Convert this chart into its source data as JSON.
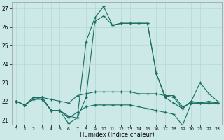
{
  "xlabel": "Humidex (Indice chaleur)",
  "xlim": [
    -0.5,
    23.5
  ],
  "ylim": [
    20.75,
    27.35
  ],
  "yticks": [
    21,
    22,
    23,
    24,
    25,
    26,
    27
  ],
  "xticks": [
    0,
    1,
    2,
    3,
    4,
    5,
    6,
    7,
    8,
    9,
    10,
    11,
    12,
    13,
    14,
    15,
    16,
    17,
    18,
    19,
    20,
    21,
    22,
    23
  ],
  "bg_color": "#cde9e7",
  "grid_color": "#b2d8d5",
  "line_color": "#1a6e62",
  "curve1_x": [
    0,
    1,
    2,
    3,
    4,
    5,
    6,
    7,
    8,
    9,
    10,
    11,
    12,
    13,
    14,
    15,
    16,
    17,
    18,
    19,
    20,
    21,
    22,
    23
  ],
  "curve1_y": [
    22.0,
    21.8,
    22.2,
    22.2,
    21.5,
    21.5,
    21.2,
    21.1,
    25.2,
    26.5,
    27.1,
    26.1,
    26.2,
    26.2,
    26.2,
    26.2,
    23.5,
    22.2,
    21.9,
    21.6,
    22.0,
    21.9,
    22.0,
    21.9
  ],
  "curve2_x": [
    0,
    1,
    2,
    3,
    4,
    5,
    6,
    7,
    8,
    9,
    10,
    11,
    12,
    13,
    14,
    15,
    16,
    17,
    18,
    19,
    20,
    21,
    22,
    23
  ],
  "curve2_y": [
    22.0,
    21.8,
    22.2,
    22.2,
    22.1,
    22.0,
    21.9,
    22.3,
    22.4,
    22.5,
    22.5,
    22.5,
    22.5,
    22.5,
    22.4,
    22.4,
    22.4,
    22.3,
    22.3,
    21.7,
    21.9,
    21.9,
    21.9,
    21.9
  ],
  "curve3_x": [
    0,
    1,
    2,
    3,
    4,
    5,
    6,
    7,
    8,
    9,
    10,
    11,
    12,
    13,
    14,
    15,
    16,
    17,
    18,
    19,
    20,
    21,
    22,
    23
  ],
  "curve3_y": [
    22.0,
    21.8,
    22.1,
    22.2,
    21.5,
    21.5,
    20.8,
    21.1,
    22.2,
    26.3,
    26.6,
    26.1,
    26.2,
    26.2,
    26.2,
    26.2,
    23.5,
    22.3,
    22.2,
    21.6,
    22.0,
    23.0,
    22.4,
    22.0
  ],
  "curve4_x": [
    0,
    1,
    2,
    3,
    4,
    5,
    6,
    7,
    8,
    9,
    10,
    11,
    12,
    13,
    14,
    15,
    16,
    17,
    18,
    19,
    20,
    21,
    22,
    23
  ],
  "curve4_y": [
    22.0,
    21.8,
    22.1,
    22.1,
    21.5,
    21.5,
    21.1,
    21.4,
    21.7,
    21.8,
    21.8,
    21.8,
    21.8,
    21.8,
    21.7,
    21.6,
    21.5,
    21.4,
    21.3,
    20.7,
    21.9,
    21.9,
    21.9,
    21.9
  ]
}
